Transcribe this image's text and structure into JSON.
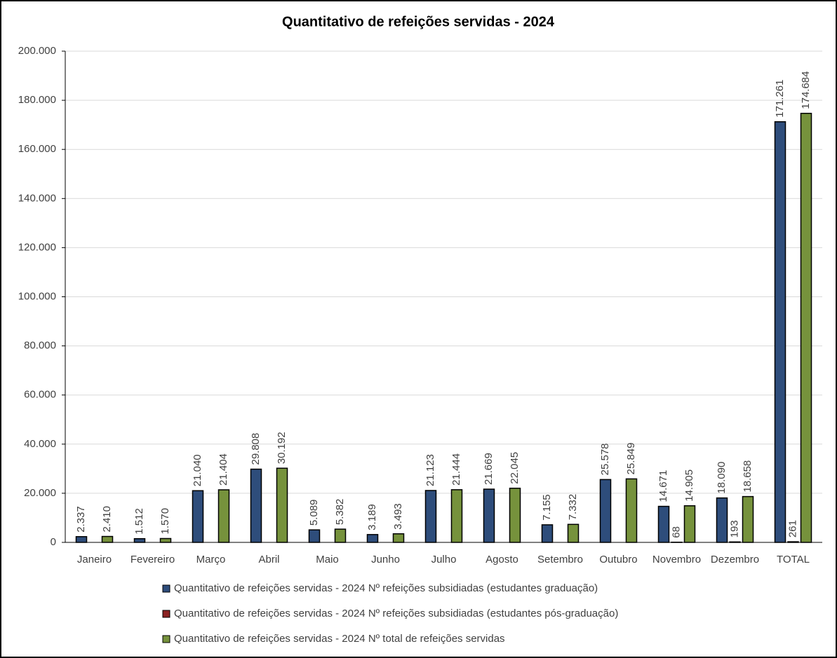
{
  "chart_data": {
    "type": "bar",
    "title": "Quantitativo de refeições servidas - 2024",
    "categories": [
      "Janeiro",
      "Fevereiro",
      "Março",
      "Abril",
      "Maio",
      "Junho",
      "Julho",
      "Agosto",
      "Setembro",
      "Outubro",
      "Novembro",
      "Dezembro",
      "TOTAL"
    ],
    "series": [
      {
        "name": "Quantitativo de refeições servidas - 2024 Nº refeições subsidiadas (estudantes graduação)",
        "color": "#2e4d7b",
        "values": [
          2337,
          1512,
          21040,
          29808,
          5089,
          3189,
          21123,
          21669,
          7155,
          25578,
          14671,
          18090,
          171261
        ],
        "value_labels": [
          "2.337",
          "1.512",
          "21.040",
          "29.808",
          "5.089",
          "3.189",
          "21.123",
          "21.669",
          "7.155",
          "25.578",
          "14.671",
          "18.090",
          "171.261"
        ]
      },
      {
        "name": "Quantitativo de refeições servidas - 2024 Nº refeições subsidiadas (estudantes pós-graduação)",
        "color": "#8b2222",
        "values": [
          null,
          null,
          null,
          null,
          null,
          null,
          null,
          null,
          null,
          null,
          68,
          193,
          261
        ],
        "value_labels": [
          null,
          null,
          null,
          null,
          null,
          null,
          null,
          null,
          null,
          null,
          "68",
          "193",
          "261"
        ]
      },
      {
        "name": "Quantitativo de refeições servidas - 2024 Nº total de refeições servidas",
        "color": "#76923c",
        "values": [
          2410,
          1570,
          21404,
          30192,
          5382,
          3493,
          21444,
          22045,
          7332,
          25849,
          14905,
          18658,
          174684
        ],
        "value_labels": [
          "2.410",
          "1.570",
          "21.404",
          "30.192",
          "5.382",
          "3.493",
          "21.444",
          "22.045",
          "7.332",
          "25.849",
          "14.905",
          "18.658",
          "174.684"
        ]
      }
    ],
    "ylim": [
      0,
      200000
    ],
    "yticks": [
      0,
      {
        "value": 20000,
        "label": "20.000"
      },
      {
        "value": 40000,
        "label": "40.000"
      },
      {
        "value": 60000,
        "label": "60.000"
      },
      {
        "value": 80000,
        "label": "80.000"
      },
      {
        "value": 100000,
        "label": "100.000"
      },
      {
        "value": 120000,
        "label": "120.000"
      },
      {
        "value": 140000,
        "label": "140.000"
      },
      {
        "value": 160000,
        "label": "160.000"
      },
      {
        "value": 180000,
        "label": "180.000"
      },
      {
        "value": 200000,
        "label": "200.000"
      }
    ],
    "grid": true
  }
}
